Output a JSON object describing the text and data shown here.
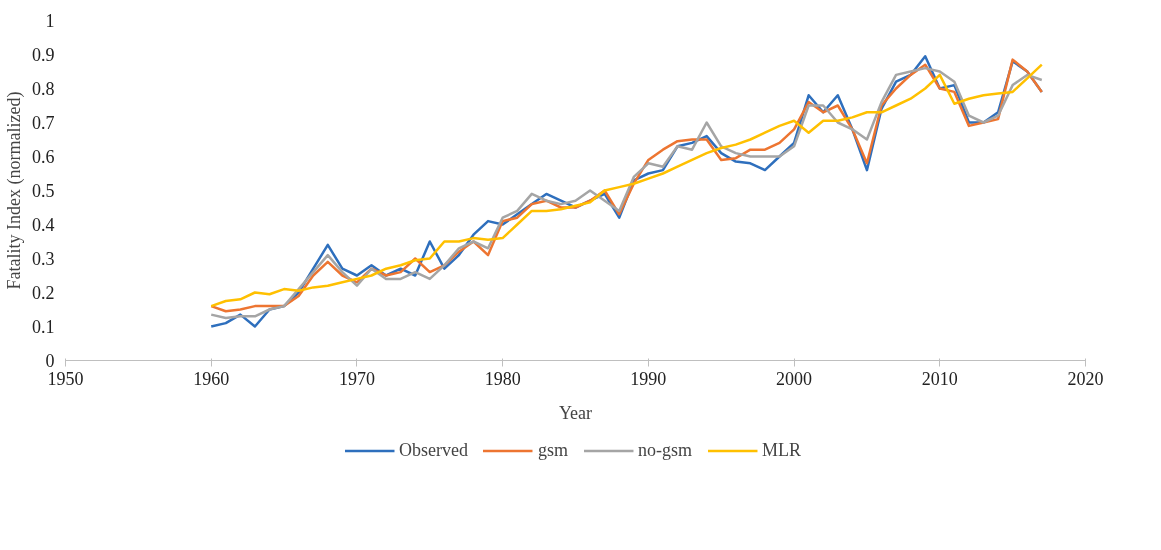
{
  "chart_data": {
    "type": "line",
    "xlabel": "Year",
    "ylabel": "Fatality Index (normalized)",
    "x": [
      1960,
      1961,
      1962,
      1963,
      1964,
      1965,
      1966,
      1967,
      1968,
      1969,
      1970,
      1971,
      1972,
      1973,
      1974,
      1975,
      1976,
      1977,
      1978,
      1979,
      1980,
      1981,
      1982,
      1983,
      1984,
      1985,
      1986,
      1987,
      1988,
      1989,
      1990,
      1991,
      1992,
      1993,
      1994,
      1995,
      1996,
      1997,
      1998,
      1999,
      2000,
      2001,
      2002,
      2003,
      2004,
      2005,
      2006,
      2007,
      2008,
      2009,
      2010,
      2011,
      2012,
      2013,
      2014,
      2015,
      2016,
      2017
    ],
    "series": [
      {
        "name": "Observed",
        "color": "#2e6fbd",
        "values": [
          0.1,
          0.11,
          0.135,
          0.1,
          0.15,
          0.16,
          0.2,
          0.27,
          0.34,
          0.27,
          0.25,
          0.28,
          0.25,
          0.27,
          0.25,
          0.35,
          0.27,
          0.31,
          0.37,
          0.41,
          0.4,
          0.43,
          0.46,
          0.49,
          0.47,
          0.45,
          0.47,
          0.49,
          0.42,
          0.53,
          0.55,
          0.56,
          0.63,
          0.64,
          0.66,
          0.61,
          0.585,
          0.58,
          0.56,
          0.6,
          0.64,
          0.78,
          0.73,
          0.78,
          0.68,
          0.56,
          0.74,
          0.82,
          0.84,
          0.895,
          0.8,
          0.81,
          0.7,
          0.7,
          0.73,
          0.88,
          0.85,
          0.79
        ]
      },
      {
        "name": "gsm",
        "color": "#ed7531",
        "values": [
          0.16,
          0.145,
          0.15,
          0.16,
          0.16,
          0.16,
          0.19,
          0.25,
          0.29,
          0.25,
          0.23,
          0.27,
          0.25,
          0.26,
          0.3,
          0.26,
          0.28,
          0.32,
          0.35,
          0.31,
          0.41,
          0.42,
          0.46,
          0.47,
          0.45,
          0.45,
          0.47,
          0.5,
          0.43,
          0.52,
          0.59,
          0.62,
          0.645,
          0.65,
          0.65,
          0.59,
          0.595,
          0.62,
          0.62,
          0.64,
          0.68,
          0.76,
          0.73,
          0.75,
          0.68,
          0.58,
          0.75,
          0.8,
          0.84,
          0.87,
          0.8,
          0.79,
          0.69,
          0.7,
          0.71,
          0.885,
          0.85,
          0.79
        ]
      },
      {
        "name": "no-gsm",
        "color": "#a5a5a5",
        "values": [
          0.135,
          0.125,
          0.13,
          0.13,
          0.15,
          0.16,
          0.21,
          0.26,
          0.31,
          0.26,
          0.22,
          0.27,
          0.24,
          0.24,
          0.26,
          0.24,
          0.28,
          0.33,
          0.35,
          0.33,
          0.42,
          0.44,
          0.49,
          0.47,
          0.46,
          0.47,
          0.5,
          0.47,
          0.44,
          0.54,
          0.58,
          0.57,
          0.63,
          0.62,
          0.7,
          0.63,
          0.61,
          0.6,
          0.6,
          0.6,
          0.63,
          0.75,
          0.75,
          0.7,
          0.68,
          0.65,
          0.76,
          0.84,
          0.85,
          0.86,
          0.85,
          0.82,
          0.72,
          0.7,
          0.72,
          0.81,
          0.84,
          0.825
        ]
      },
      {
        "name": "MLR",
        "color": "#ffc000",
        "values": [
          0.16,
          0.175,
          0.18,
          0.2,
          0.195,
          0.21,
          0.205,
          0.215,
          0.22,
          0.23,
          0.24,
          0.25,
          0.27,
          0.28,
          0.295,
          0.3,
          0.35,
          0.35,
          0.36,
          0.355,
          0.36,
          0.4,
          0.44,
          0.44,
          0.445,
          0.455,
          0.465,
          0.5,
          0.51,
          0.52,
          0.535,
          0.55,
          0.57,
          0.59,
          0.61,
          0.625,
          0.635,
          0.65,
          0.67,
          0.69,
          0.705,
          0.67,
          0.705,
          0.705,
          0.715,
          0.73,
          0.73,
          0.75,
          0.77,
          0.8,
          0.84,
          0.755,
          0.77,
          0.78,
          0.785,
          0.79,
          0.83,
          0.87
        ]
      }
    ],
    "xlim": [
      1950,
      2020
    ],
    "xticks": [
      1950,
      1960,
      1970,
      1980,
      1990,
      2000,
      2010,
      2020
    ],
    "ylim": [
      0,
      1
    ],
    "yticks": [
      0,
      0.1,
      0.2,
      0.3,
      0.4,
      0.5,
      0.6,
      0.7,
      0.8,
      0.9,
      1
    ],
    "grid": false,
    "legend": "bottom",
    "marker": "none",
    "line_style": "solid"
  }
}
